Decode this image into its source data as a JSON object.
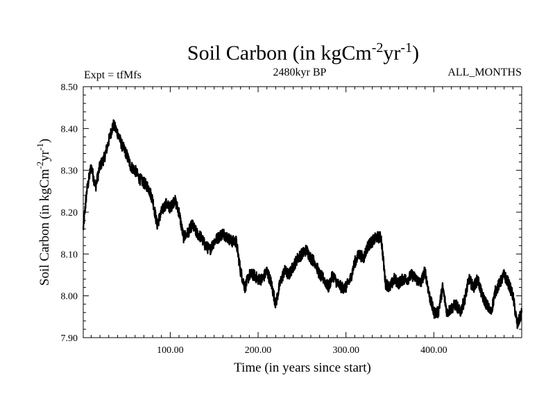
{
  "chart_data": {
    "type": "line",
    "title_main": "Soil Carbon (in kgCm",
    "title_sup1": "-2",
    "title_mid": "yr",
    "title_sup2": "-1",
    "title_end": ")",
    "subtitle_left": "Expt = tfMfs",
    "subtitle_center": "2480kyr BP",
    "subtitle_right": "ALL_MONTHS",
    "xlabel": "Time (in years since start)",
    "ylabel_main": "Soil Carbon (in kgCm",
    "ylabel_sup1": "-2",
    "ylabel_mid": "yr",
    "ylabel_sup2": "-1",
    "ylabel_end": ")",
    "xlim": [
      1,
      500
    ],
    "ylim": [
      7.9,
      8.5
    ],
    "x_ticks": [
      100,
      200,
      300,
      400
    ],
    "x_tick_labels": [
      "100.00",
      "200.00",
      "300.00",
      "400.00"
    ],
    "y_ticks": [
      7.9,
      8.0,
      8.1,
      8.2,
      8.3,
      8.4,
      8.5
    ],
    "y_tick_labels": [
      "7.90",
      "8.00",
      "8.10",
      "8.20",
      "8.30",
      "8.40",
      "8.50"
    ],
    "series": [
      {
        "name": "Soil Carbon",
        "color": "#000000",
        "x": [
          1,
          5,
          10,
          15,
          20,
          25,
          30,
          35,
          40,
          45,
          50,
          55,
          60,
          65,
          70,
          75,
          80,
          85,
          90,
          95,
          100,
          105,
          110,
          115,
          120,
          125,
          130,
          135,
          140,
          145,
          150,
          155,
          160,
          165,
          170,
          175,
          180,
          185,
          190,
          195,
          200,
          205,
          210,
          215,
          220,
          225,
          230,
          235,
          240,
          245,
          250,
          255,
          260,
          265,
          270,
          275,
          280,
          285,
          290,
          295,
          300,
          305,
          310,
          315,
          320,
          325,
          330,
          335,
          340,
          345,
          350,
          355,
          360,
          365,
          370,
          375,
          380,
          385,
          390,
          395,
          400,
          405,
          410,
          415,
          420,
          425,
          430,
          435,
          440,
          445,
          450,
          455,
          460,
          465,
          470,
          475,
          480,
          485,
          490,
          495,
          500
        ],
        "values": [
          8.16,
          8.25,
          8.31,
          8.26,
          8.31,
          8.33,
          8.37,
          8.41,
          8.39,
          8.36,
          8.34,
          8.31,
          8.3,
          8.28,
          8.27,
          8.26,
          8.23,
          8.17,
          8.2,
          8.22,
          8.21,
          8.23,
          8.2,
          8.14,
          8.15,
          8.17,
          8.15,
          8.14,
          8.12,
          8.11,
          8.13,
          8.14,
          8.15,
          8.14,
          8.13,
          8.13,
          8.06,
          8.02,
          8.05,
          8.05,
          8.04,
          8.04,
          8.06,
          8.03,
          7.98,
          8.03,
          8.06,
          8.05,
          8.07,
          8.09,
          8.1,
          8.11,
          8.09,
          8.08,
          8.05,
          8.04,
          8.02,
          8.05,
          8.03,
          8.02,
          8.02,
          8.04,
          8.08,
          8.1,
          8.09,
          8.12,
          8.13,
          8.14,
          8.14,
          8.03,
          8.02,
          8.04,
          8.03,
          8.04,
          8.04,
          8.05,
          8.04,
          8.03,
          8.06,
          8.0,
          7.96,
          7.96,
          8.02,
          7.96,
          7.97,
          7.98,
          7.96,
          7.99,
          8.04,
          8.02,
          8.04,
          8.0,
          7.98,
          7.96,
          8.01,
          8.03,
          8.05,
          8.03,
          8.0,
          7.93,
          7.96
        ]
      }
    ]
  }
}
